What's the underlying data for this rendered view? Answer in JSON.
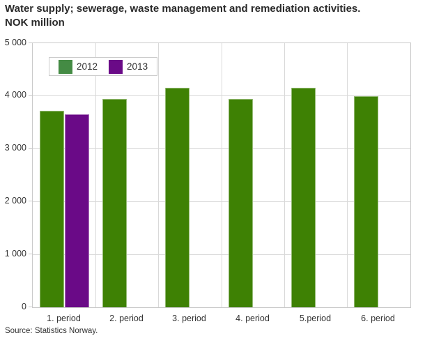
{
  "title": {
    "line1": "Water supply; sewerage, waste management and remediation activities.",
    "line2": "NOK million"
  },
  "source": "Source: Statistics Norway.",
  "legend": {
    "items": [
      {
        "label": "2012",
        "color": "#448b44"
      },
      {
        "label": "2013",
        "color": "#6a0a87"
      }
    ]
  },
  "chart_data": {
    "type": "bar",
    "title": "Water supply; sewerage, waste management and remediation activities. NOK million",
    "categories": [
      "1. period",
      "2. period",
      "3. period",
      "4. period",
      "5.period",
      "6. period"
    ],
    "series": [
      {
        "name": "2012",
        "color": "#3e8104",
        "values": [
          3720,
          3940,
          4150,
          3950,
          4150,
          4000
        ]
      },
      {
        "name": "2013",
        "color": "#6a0a87",
        "values": [
          3650,
          null,
          null,
          null,
          null,
          null
        ]
      }
    ],
    "xlabel": "",
    "ylabel": "",
    "ylim": [
      0,
      5000
    ],
    "ytick_labels": [
      "0",
      "1 000",
      "2 000",
      "3 000",
      "4 000",
      "5 000"
    ],
    "grid": true,
    "legend_position": "top-left-inside",
    "source": "Source: Statistics Norway."
  }
}
